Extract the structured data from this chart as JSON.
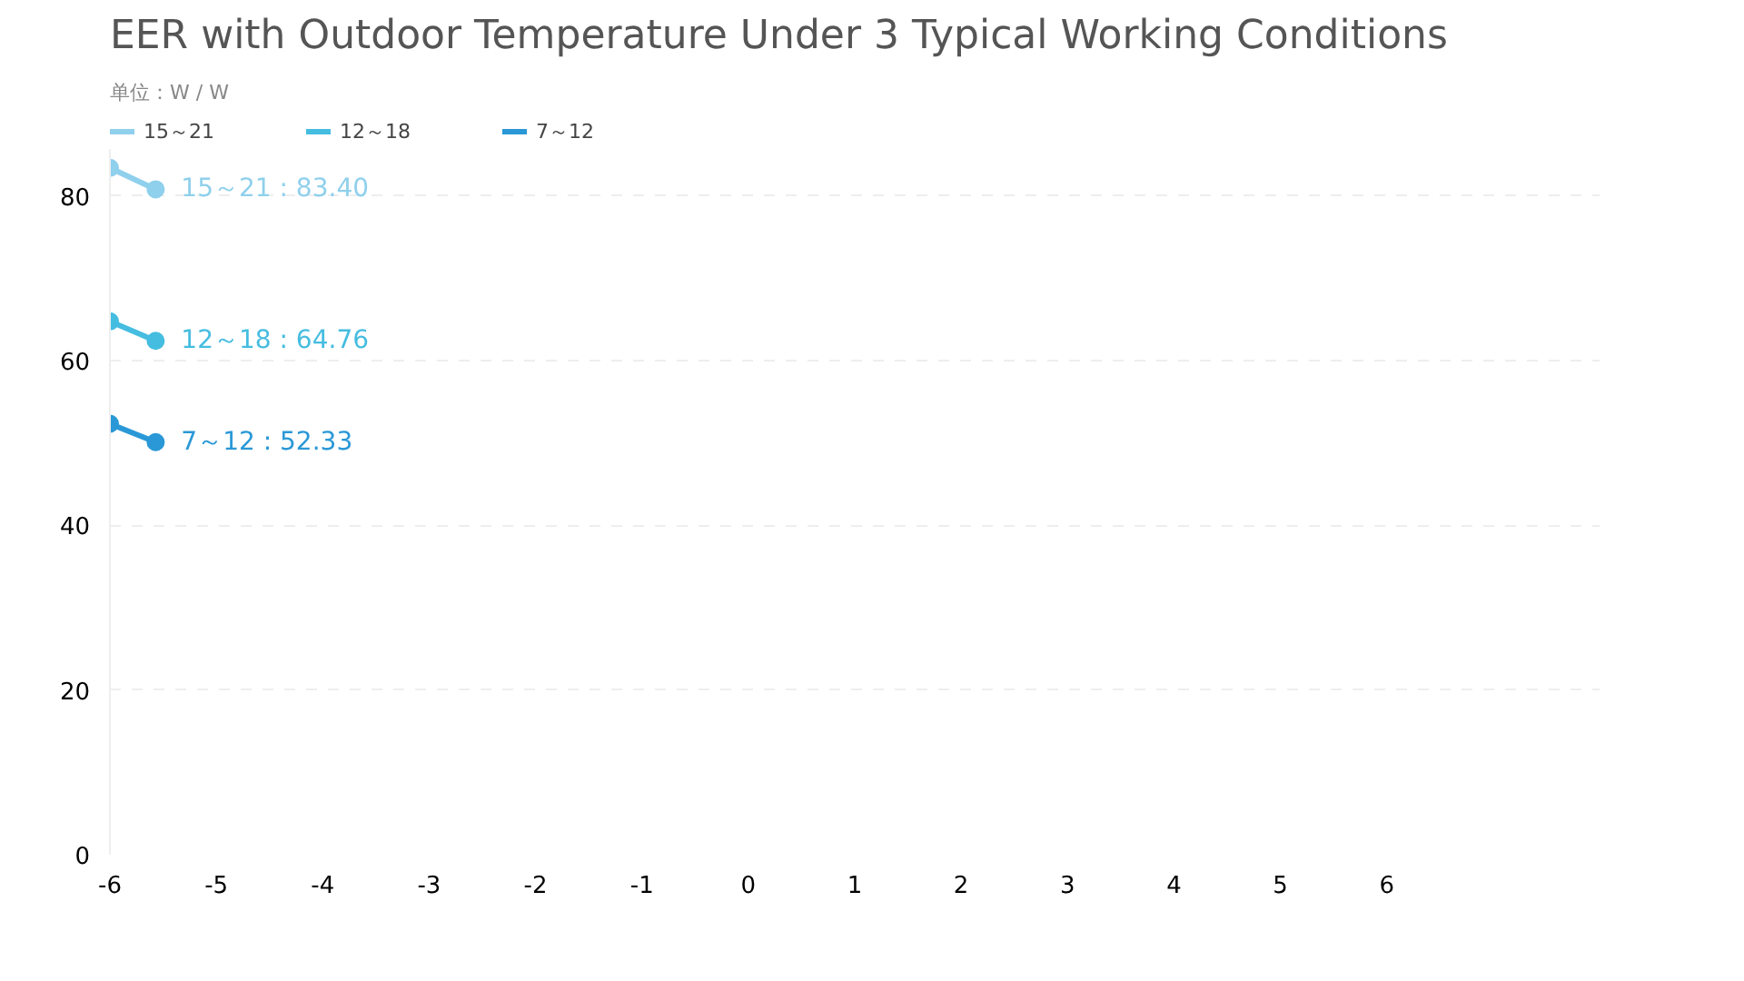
{
  "chart_data": {
    "type": "line",
    "title": "EER with Outdoor Temperature Under 3 Typical Working Conditions",
    "subtitle": "单位：W / W",
    "x": [
      -6,
      -5.57
    ],
    "series": [
      {
        "name": "15～21",
        "color": "#8fd0ec",
        "values": [
          83.4,
          80.8
        ]
      },
      {
        "name": "12～18",
        "color": "#45bde0",
        "values": [
          64.76,
          62.4
        ]
      },
      {
        "name": "7～12",
        "color": "#2a98d6",
        "values": [
          52.33,
          50.1
        ]
      }
    ],
    "annotations": [
      "15～21 : 83.40",
      "12～18 : 64.76",
      "7～12 : 52.33"
    ],
    "xlim": [
      -6,
      8
    ],
    "xticks": [
      -6,
      -5,
      -4,
      -3,
      -2,
      -1,
      0,
      1,
      2,
      3,
      4,
      5,
      6
    ],
    "ylim": [
      0,
      90
    ],
    "yticks": [
      0,
      20,
      40,
      60,
      80
    ],
    "grid": "y",
    "legend": "top left",
    "marker": "circle",
    "line_style": "solid"
  }
}
